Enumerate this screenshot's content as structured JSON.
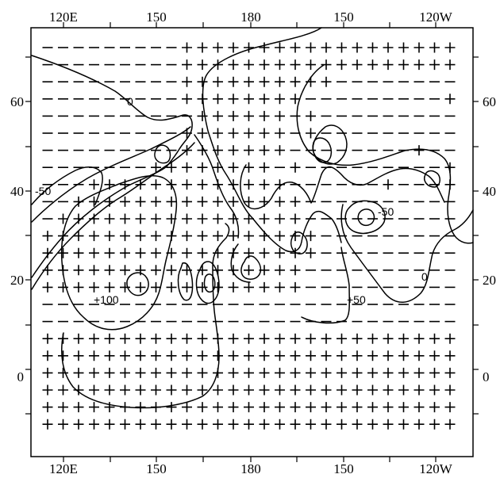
{
  "lon_labels_top": [
    "120E",
    "150",
    "180",
    "150",
    "120W"
  ],
  "lon_labels_bottom": [
    "120E",
    "150",
    "180",
    "150",
    "120W"
  ],
  "lat_labels_left": [
    "60",
    "40",
    "20",
    "0"
  ],
  "lat_labels_right": [
    "60",
    "40",
    "20",
    "0"
  ],
  "contour_labels": [
    "0",
    "-50",
    "+100",
    "+50",
    "-50",
    "0"
  ],
  "sign_grid": [
    "---------++++++++++++++++++",
    "---------++++++++++++++++++",
    "---------++++++++++--------",
    "---------++++++++---------+",
    "----------++++++-+---------",
    "---------+++++++-+---------",
    "---------+++++++--------+--",
    "-------++++++++-+---------+",
    "---+++++++++++++------+---+",
    "--+++++++++++++++----------",
    "-++++++++++++++++----------",
    "++++++++++++++++++---------",
    "++++++++++++++++++---------",
    "+++++++++++++++++----------",
    "+++++++++++++++++----------",
    "---------------------------",
    "---------------------------",
    "+++++++++++++++++++++++++++",
    "+++++++++++++++++++++++++++",
    "+++++++++++++++++++++++++++",
    "+++++++++++++++++++++++++++",
    "+++++++++++++++++++++++++++",
    "+++++++++++++++++++++++++++"
  ]
}
